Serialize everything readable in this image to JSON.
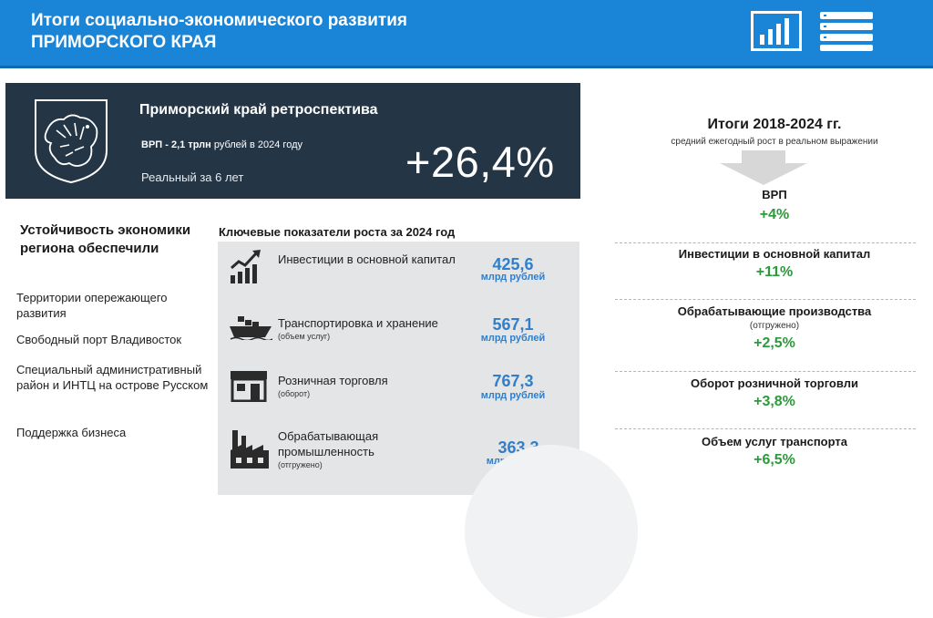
{
  "header": {
    "title_line1": "Итоги социально-экономического развития",
    "title_line2": "ПРИМОРСКОГО КРАЯ",
    "icons": [
      "bar-chart-icon",
      "list-icon"
    ]
  },
  "retrospective": {
    "title": "Приморский край ретроспектива",
    "vrp_label": "ВРП - ",
    "vrp_value": "2,1 трлн",
    "vrp_suffix": " рублей в 2024 году",
    "real_label": "Реальный за 6 лет",
    "growth": "+26,4%",
    "crest_icon": "coat-of-arms-icon"
  },
  "stability": {
    "title": "Устойчивость экономики региона обеспечили",
    "items": [
      "Территории опережающего развития",
      "Свободный порт Владивосток",
      "Специальный административный район и ИНТЦ на острове Русском",
      "Поддержка бизнеса"
    ]
  },
  "key_indicators": {
    "title": "Ключевые показатели роста за 2024 год",
    "items": [
      {
        "icon": "investment-growth-icon",
        "label": "Инвестиции в основной капитал",
        "note": "",
        "value": "425,6",
        "unit": "млрд рублей"
      },
      {
        "icon": "cargo-ship-icon",
        "label": "Транспортировка и хранение",
        "note": "(объем услуг)",
        "value": "567,1",
        "unit": "млрд рублей"
      },
      {
        "icon": "store-icon",
        "label": "Розничная торговля",
        "note": "(оборот)",
        "value": "767,3",
        "unit": "млрд рублей"
      },
      {
        "icon": "factory-icon",
        "label": "Обрабатывающая промышленность",
        "note": "(отгружено)",
        "value": "363,3",
        "unit": "млрд рублей"
      }
    ]
  },
  "results": {
    "title": "Итоги 2018-2024 гг.",
    "subtitle": "средний ежегодный рост в реальном выражении",
    "items": [
      {
        "label": "ВРП",
        "note": "",
        "value": "+4%"
      },
      {
        "label": "Инвестиции в основной капитал",
        "note": "",
        "value": "+11%"
      },
      {
        "label": "Обрабатывающие производства",
        "note": "(отгружено)",
        "value": "+2,5%"
      },
      {
        "label": "Оборот розничной торговли",
        "note": "",
        "value": "+3,8%"
      },
      {
        "label": "Объем услуг транспорта",
        "note": "",
        "value": "+6,5%"
      }
    ]
  },
  "colors": {
    "header_blue": "#1a84d6",
    "dark_panel": "#243546",
    "value_blue": "#2f7fca",
    "growth_green": "#2a9a3a"
  }
}
